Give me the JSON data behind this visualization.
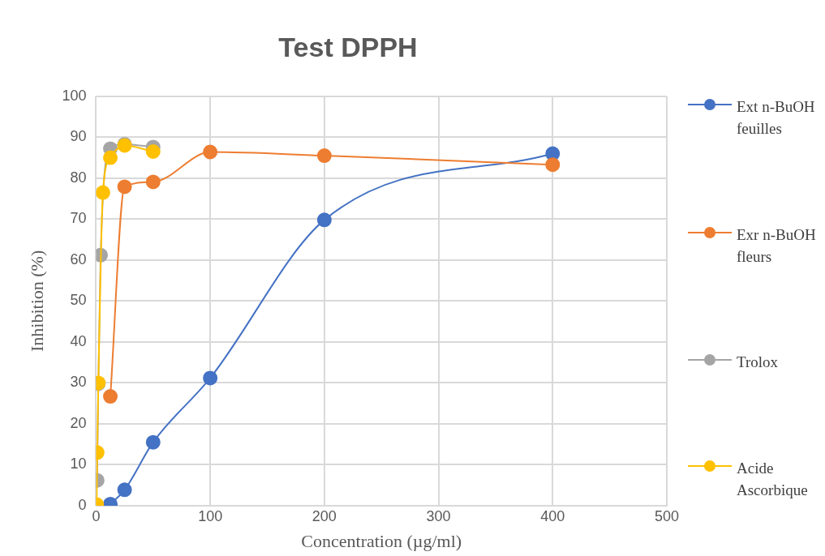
{
  "chart_data": {
    "type": "line",
    "title": "Test DPPH",
    "xlabel": "Concentration (µg/ml)",
    "ylabel": "Inhibition (%)",
    "xlim": [
      0,
      500
    ],
    "xticks": [
      0,
      100,
      200,
      300,
      400,
      500
    ],
    "ylim": [
      0,
      100
    ],
    "yticks": [
      0,
      10,
      20,
      30,
      40,
      50,
      60,
      70,
      80,
      90,
      100
    ],
    "grid": true,
    "legend": "right",
    "marker": "circle",
    "line_style": "solid",
    "series": [
      {
        "name": "Ext n-BuOH feuilles",
        "color": "#4472c4",
        "x": [
          12.5,
          25,
          50,
          100,
          200,
          400
        ],
        "values": [
          0.4,
          3.9,
          15.5,
          31.2,
          69.8,
          86
        ]
      },
      {
        "name": "Exr n-BuOH fleurs",
        "color": "#ed7d31",
        "x": [
          12.5,
          25,
          50,
          100,
          200,
          400
        ],
        "values": [
          26.7,
          77.9,
          79.1,
          86.4,
          85.5,
          83.3
        ]
      },
      {
        "name": "Trolox",
        "color": "#a5a5a5",
        "x": [
          1,
          2,
          4,
          12.5,
          25,
          50
        ],
        "values": [
          6.2,
          29.8,
          61.2,
          87.2,
          88.3,
          87.6
        ]
      },
      {
        "name": "Acide Ascorbique",
        "color": "#ffc000",
        "x": [
          0.5,
          1,
          2,
          6,
          12.5,
          25,
          50
        ],
        "values": [
          0.3,
          13,
          30,
          76.5,
          85,
          88,
          86.5
        ]
      }
    ]
  }
}
